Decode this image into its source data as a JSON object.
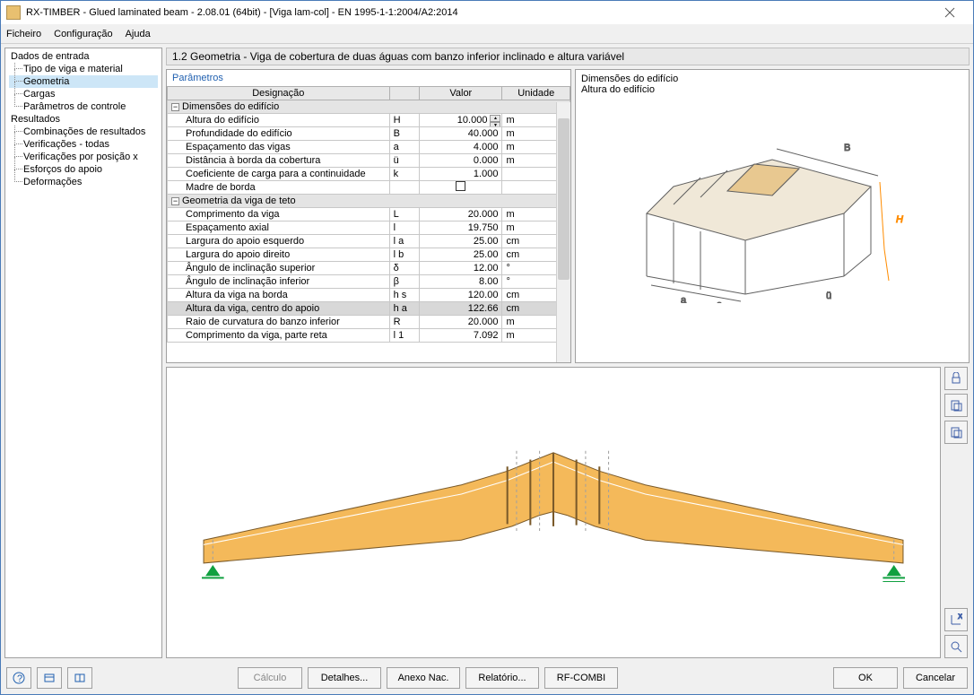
{
  "window": {
    "title": "RX-TIMBER - Glued laminated beam - 2.08.01 (64bit) - [Viga lam-col] - EN 1995-1-1:2004/A2:2014"
  },
  "menu": {
    "file": "Ficheiro",
    "config": "Configuração",
    "help": "Ajuda"
  },
  "tree": {
    "input": "Dados de entrada",
    "input_items": [
      "Tipo de viga e material",
      "Geometria",
      "Cargas",
      "Parâmetros de controle"
    ],
    "results": "Resultados",
    "results_items": [
      "Combinações de resultados",
      "Verificações - todas",
      "Verificações por posição x",
      "Esforços do apoio",
      "Deformações"
    ]
  },
  "header": "1.2 Geometria  -  Viga de cobertura de duas águas com banzo inferior inclinado e altura variável",
  "params_title": "Parâmetros",
  "table": {
    "columns": {
      "desig": "Designação",
      "sym": "",
      "value": "Valor",
      "unit": "Unidade"
    },
    "section1": "Dimensões do edifício",
    "rows1": [
      {
        "d": "Altura do edifício",
        "s": "H",
        "v": "10.000",
        "u": "m",
        "edit": true
      },
      {
        "d": "Profundidade do edifício",
        "s": "B",
        "v": "40.000",
        "u": "m"
      },
      {
        "d": "Espaçamento das vigas",
        "s": "a",
        "v": "4.000",
        "u": "m"
      },
      {
        "d": "Distância à borda da cobertura",
        "s": "ü",
        "v": "0.000",
        "u": "m"
      },
      {
        "d": "Coeficiente de carga para a continuidade",
        "s": "k",
        "v": "1.000",
        "u": ""
      },
      {
        "d": "Madre de borda",
        "s": "",
        "v": "",
        "u": "",
        "cb": true
      }
    ],
    "section2": "Geometria da viga de teto",
    "rows2": [
      {
        "d": "Comprimento da viga",
        "s": "L",
        "v": "20.000",
        "u": "m"
      },
      {
        "d": "Espaçamento axial",
        "s": "l",
        "v": "19.750",
        "u": "m"
      },
      {
        "d": "Largura do apoio esquerdo",
        "s": "l a",
        "v": "25.00",
        "u": "cm"
      },
      {
        "d": "Largura do apoio direito",
        "s": "l b",
        "v": "25.00",
        "u": "cm"
      },
      {
        "d": "Ângulo de inclinação superior",
        "s": "δ",
        "v": "12.00",
        "u": "°"
      },
      {
        "d": "Ângulo de inclinação inferior",
        "s": "β",
        "v": "8.00",
        "u": "°"
      },
      {
        "d": "Altura da viga na borda",
        "s": "h s",
        "v": "120.00",
        "u": "cm"
      },
      {
        "d": "Altura da viga, centro do apoio",
        "s": "h a",
        "v": "122.66",
        "u": "cm",
        "hl": true
      },
      {
        "d": "Raio de curvatura do banzo inferior",
        "s": "R",
        "v": "20.000",
        "u": "m"
      },
      {
        "d": "Comprimento da viga, parte reta",
        "s": "l 1",
        "v": "7.092",
        "u": "m"
      }
    ]
  },
  "diagram": {
    "title1": "Dimensões do edifício",
    "title2": "Altura do edifício",
    "labels": {
      "B": "B",
      "H": "H",
      "a": "a",
      "u": "ü"
    },
    "colors": {
      "line": "#606060",
      "roof_fill": "#f0e8d8",
      "roof_hl": "#e8c890",
      "dim": "#ff8c00"
    }
  },
  "beam": {
    "colors": {
      "fill": "#f4b95a",
      "stroke": "#7a5a2a",
      "support": "#10a040",
      "dash": "#a0a0a0"
    }
  },
  "buttons": {
    "calc": "Cálculo",
    "details": "Detalhes...",
    "annex": "Anexo Nac.",
    "report": "Relatório...",
    "rfcombi": "RF-COMBI",
    "ok": "OK",
    "cancel": "Cancelar"
  }
}
